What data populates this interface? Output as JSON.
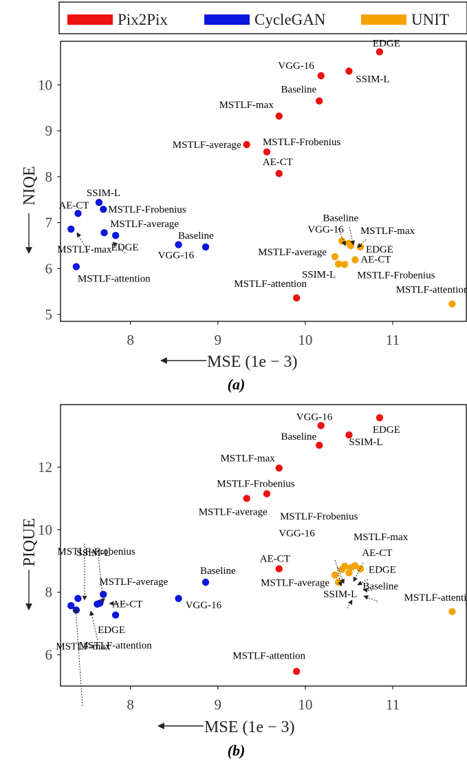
{
  "legend": {
    "entries": [
      {
        "name": "Pix2Pix",
        "color": "#ee1111"
      },
      {
        "name": "CycleGAN",
        "color": "#0b16dd"
      },
      {
        "name": "UNIT",
        "color": "#f5a300"
      }
    ]
  },
  "chart_data": [
    {
      "type": "scatter",
      "panel_label": "(a)",
      "xlabel": "MSE (1e − 3)",
      "ylabel": "NIQE",
      "xlim": [
        7.2,
        11.85
      ],
      "ylim": [
        4.85,
        10.95
      ],
      "xticks": [
        8,
        9,
        10,
        11
      ],
      "yticks": [
        5,
        6,
        7,
        8,
        9,
        10
      ],
      "grid": false,
      "series": [
        {
          "name": "Pix2Pix",
          "color": "#ee1111",
          "points": [
            {
              "label": "EDGE",
              "x": 10.85,
              "y": 10.72
            },
            {
              "label": "VGG-16",
              "x": 10.18,
              "y": 10.2
            },
            {
              "label": "SSIM-L",
              "x": 10.5,
              "y": 10.3
            },
            {
              "label": "Baseline",
              "x": 10.16,
              "y": 9.65
            },
            {
              "label": "MSTLF-max",
              "x": 9.7,
              "y": 9.32
            },
            {
              "label": "MSTLF-average",
              "x": 9.33,
              "y": 8.7
            },
            {
              "label": "MSTLF-Frobenius",
              "x": 9.56,
              "y": 8.54
            },
            {
              "label": "AE-CT",
              "x": 9.7,
              "y": 8.07
            },
            {
              "label": "MSTLF-attention",
              "x": 9.9,
              "y": 5.36
            }
          ]
        },
        {
          "name": "CycleGAN",
          "color": "#0b16dd",
          "points": [
            {
              "label": "SSIM-L",
              "x": 7.64,
              "y": 7.44
            },
            {
              "label": "AE-CT",
              "x": 7.4,
              "y": 7.2
            },
            {
              "label": "MSTLF-Frobenius",
              "x": 7.69,
              "y": 7.29
            },
            {
              "label": "MSTLF-max",
              "x": 7.32,
              "y": 6.86
            },
            {
              "label": "MSTLF-average",
              "x": 7.83,
              "y": 6.72
            },
            {
              "label": "EDGE",
              "x": 7.7,
              "y": 6.78
            },
            {
              "label": "VGG-16",
              "x": 8.55,
              "y": 6.52
            },
            {
              "label": "Baseline",
              "x": 8.86,
              "y": 6.47
            },
            {
              "label": "MSTLF-attention",
              "x": 7.38,
              "y": 6.04
            }
          ]
        },
        {
          "name": "UNIT",
          "color": "#f5a300",
          "points": [
            {
              "label": "Baseline",
              "x": 10.5,
              "y": 6.55
            },
            {
              "label": "VGG-16",
              "x": 10.42,
              "y": 6.6
            },
            {
              "label": "EDGE",
              "x": 10.63,
              "y": 6.47
            },
            {
              "label": "MSTLF-max",
              "x": 10.52,
              "y": 6.5
            },
            {
              "label": "MSTLF-average",
              "x": 10.34,
              "y": 6.26
            },
            {
              "label": "AE-CT",
              "x": 10.57,
              "y": 6.19
            },
            {
              "label": "SSIM-L",
              "x": 10.38,
              "y": 6.1
            },
            {
              "label": "MSTLF-Frobenius",
              "x": 10.45,
              "y": 6.09
            },
            {
              "label": "MSTLF-attention",
              "x": 11.68,
              "y": 5.23
            }
          ]
        }
      ]
    },
    {
      "type": "scatter",
      "panel_label": "(b)",
      "xlabel": "MSE (1e − 3)",
      "ylabel": "PIQUE",
      "xlim": [
        7.2,
        11.85
      ],
      "ylim": [
        5.0,
        14.0
      ],
      "xticks": [
        8,
        9,
        10,
        11
      ],
      "yticks": [
        6,
        8,
        10,
        12
      ],
      "grid": false,
      "series": [
        {
          "name": "Pix2Pix",
          "color": "#ee1111",
          "points": [
            {
              "label": "VGG-16",
              "x": 10.18,
              "y": 13.33
            },
            {
              "label": "EDGE",
              "x": 10.85,
              "y": 13.58
            },
            {
              "label": "Baseline",
              "x": 10.16,
              "y": 12.7
            },
            {
              "label": "SSIM-L",
              "x": 10.5,
              "y": 13.03
            },
            {
              "label": "MSTLF-max",
              "x": 9.7,
              "y": 11.97
            },
            {
              "label": "MSTLF-Frobenius",
              "x": 9.56,
              "y": 11.15
            },
            {
              "label": "MSTLF-average",
              "x": 9.33,
              "y": 11.0
            },
            {
              "label": "AE-CT",
              "x": 9.7,
              "y": 8.75
            },
            {
              "label": "MSTLF-attention",
              "x": 9.9,
              "y": 5.47
            }
          ]
        },
        {
          "name": "CycleGAN",
          "color": "#0b16dd",
          "points": [
            {
              "label": "MSTLF-Frobenius",
              "x": 7.4,
              "y": 7.8
            },
            {
              "label": "SSIM-L",
              "x": 7.62,
              "y": 7.62
            },
            {
              "label": "MSTLF-average",
              "x": 7.69,
              "y": 7.93
            },
            {
              "label": "AE-CT",
              "x": 7.65,
              "y": 7.65
            },
            {
              "label": "EDGE",
              "x": 7.83,
              "y": 7.27
            },
            {
              "label": "VGG-16",
              "x": 8.55,
              "y": 7.8
            },
            {
              "label": "Baseline",
              "x": 8.86,
              "y": 8.32
            },
            {
              "label": "MSTLF-max",
              "x": 7.32,
              "y": 7.57
            },
            {
              "label": "MSTLF-attention",
              "x": 7.38,
              "y": 7.43
            }
          ]
        },
        {
          "name": "UNIT",
          "color": "#f5a300",
          "points": [
            {
              "label": "MSTLF-Frobenius",
              "x": 10.45,
              "y": 8.83
            },
            {
              "label": "VGG-16",
              "x": 10.42,
              "y": 8.73
            },
            {
              "label": "MSTLF-max",
              "x": 10.52,
              "y": 8.78
            },
            {
              "label": "AE-CT",
              "x": 10.57,
              "y": 8.85
            },
            {
              "label": "EDGE",
              "x": 10.63,
              "y": 8.75
            },
            {
              "label": "Baseline",
              "x": 10.5,
              "y": 8.62
            },
            {
              "label": "MSTLF-average",
              "x": 10.34,
              "y": 8.55
            },
            {
              "label": "SSIM-L",
              "x": 10.38,
              "y": 8.32
            },
            {
              "label": "MSTLF-attention",
              "x": 11.68,
              "y": 7.38
            }
          ]
        }
      ]
    }
  ]
}
